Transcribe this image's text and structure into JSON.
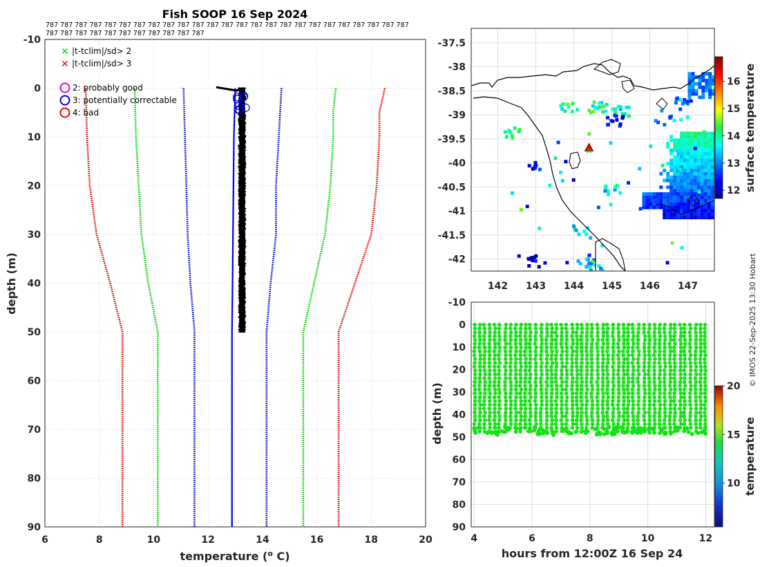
{
  "title": "Fish SOOP 16 Sep 2024",
  "id_labels": [
    "787 787 787 787 787 787 787 787 787 787 787 787 787 787 787 787 787 787 787 787 787 787 787 787 787",
    "787 787 787 787 787 787 787 787 787 787 787"
  ],
  "credit": "© IMOS 22-Sep-2025 13:30 Hobart",
  "legend": {
    "crosses": [
      {
        "label": "|t-tclim|/sd> 2",
        "color": "#00dd00"
      },
      {
        "label": "|t-tclim|/sd> 3",
        "color": "#dd0000"
      }
    ],
    "circles": [
      {
        "label": "2: probably good",
        "color": "#dd00dd"
      },
      {
        "label": "3: potentially correctable",
        "color": "#0000dd"
      },
      {
        "label": "4: bad",
        "color": "#ee0000"
      }
    ]
  },
  "chart_data": [
    {
      "type": "line",
      "name": "profile",
      "xlabel": "temperature (o C)",
      "ylabel": "depth (m)",
      "xlim": [
        6,
        20
      ],
      "ylim": [
        90,
        -10
      ],
      "xticks": [
        6,
        8,
        10,
        12,
        14,
        16,
        18,
        20
      ],
      "yticks": [
        -10,
        0,
        10,
        20,
        30,
        40,
        50,
        60,
        70,
        80,
        90
      ],
      "climatology_lines": [
        {
          "color": "#dd0000",
          "points": [
            [
              18.5,
              0
            ],
            [
              18.3,
              5
            ],
            [
              18.3,
              10
            ],
            [
              18.2,
              20
            ],
            [
              18.0,
              30
            ],
            [
              17.4,
              40
            ],
            [
              16.8,
              50
            ],
            [
              16.8,
              90
            ]
          ]
        },
        {
          "color": "#00cc00",
          "points": [
            [
              16.7,
              0
            ],
            [
              16.6,
              5
            ],
            [
              16.6,
              10
            ],
            [
              16.5,
              20
            ],
            [
              16.3,
              30
            ],
            [
              15.9,
              40
            ],
            [
              15.5,
              50
            ],
            [
              15.5,
              90
            ]
          ]
        },
        {
          "color": "#0000cc",
          "points": [
            [
              14.7,
              0
            ],
            [
              14.6,
              10
            ],
            [
              14.5,
              20
            ],
            [
              14.5,
              30
            ],
            [
              14.3,
              40
            ],
            [
              14.15,
              50
            ],
            [
              14.15,
              90
            ]
          ]
        },
        {
          "color": "#0000cc",
          "points": [
            [
              11.1,
              0
            ],
            [
              11.15,
              10
            ],
            [
              11.2,
              20
            ],
            [
              11.25,
              30
            ],
            [
              11.35,
              40
            ],
            [
              11.5,
              50
            ],
            [
              11.5,
              90
            ]
          ]
        },
        {
          "color": "#00cc00",
          "points": [
            [
              9.3,
              0
            ],
            [
              9.35,
              10
            ],
            [
              9.45,
              20
            ],
            [
              9.55,
              30
            ],
            [
              9.8,
              40
            ],
            [
              10.15,
              50
            ],
            [
              10.15,
              90
            ]
          ]
        },
        {
          "color": "#dd0000",
          "points": [
            [
              7.5,
              0
            ],
            [
              7.55,
              10
            ],
            [
              7.65,
              20
            ],
            [
              7.9,
              30
            ],
            [
              8.4,
              40
            ],
            [
              8.85,
              50
            ],
            [
              8.85,
              90
            ]
          ]
        }
      ],
      "observed": {
        "depth_range": [
          0,
          50
        ],
        "temp_range": [
          13.1,
          13.4
        ],
        "surface_spike_temp": 12.3
      },
      "flagged_circles_depth_range": [
        1,
        5
      ]
    },
    {
      "type": "heatmap",
      "name": "surface temperature map",
      "xlim": [
        141.3,
        147.7
      ],
      "ylim": [
        -42.25,
        -37.2
      ],
      "xticks": [
        142,
        143,
        144,
        145,
        146,
        147
      ],
      "yticks": [
        -37.5,
        -38,
        -38.5,
        -39,
        -39.5,
        -40,
        -40.5,
        -41,
        -41.5,
        -42
      ],
      "colorbar_label": "surface temperature",
      "colorbar_range": [
        11.7,
        16.9
      ],
      "colorbar_ticks": [
        12,
        13,
        14,
        15,
        16
      ],
      "marker": {
        "lon": 144.4,
        "lat": -39.68
      }
    },
    {
      "type": "scatter",
      "name": "depth vs time",
      "xlabel": "hours from 12:00Z 16 Sep 24",
      "ylabel": "depth (m)",
      "xlim": [
        3.9,
        12.3
      ],
      "ylim": [
        90,
        -10
      ],
      "xticks": [
        4,
        6,
        8,
        10,
        12
      ],
      "yticks": [
        -10,
        0,
        10,
        20,
        30,
        40,
        50,
        60,
        70,
        80,
        90
      ],
      "time_range": [
        4,
        12
      ],
      "depth_range": [
        0,
        49
      ],
      "colorbar_label": "temperature",
      "colorbar_range": [
        5.5,
        20
      ],
      "colorbar_ticks": [
        10,
        15,
        20
      ]
    }
  ]
}
